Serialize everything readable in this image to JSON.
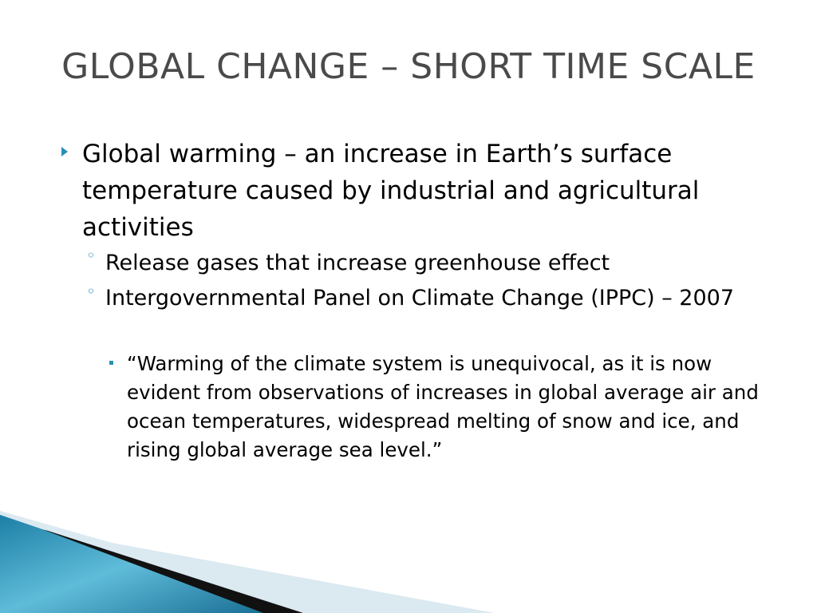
{
  "title": "GLOBAL CHANGE – SHORT TIME SCALE",
  "bullets": [
    {
      "text": "Global warming – an increase in Earth’s surface temperature caused by industrial and agricultural activities",
      "subbullets": [
        {
          "text": "Release gases that increase greenhouse effect",
          "subbullets": []
        },
        {
          "text": "Intergovernmental Panel on Climate Change (IPPC) – 2007",
          "subbullets": [
            {
              "text": "“Warming of the climate system is unequivocal, as it is now evident from observations of increases in global average air and ocean temperatures, widespread melting of snow and ice, and rising global average sea level.”"
            }
          ]
        }
      ]
    }
  ]
}
